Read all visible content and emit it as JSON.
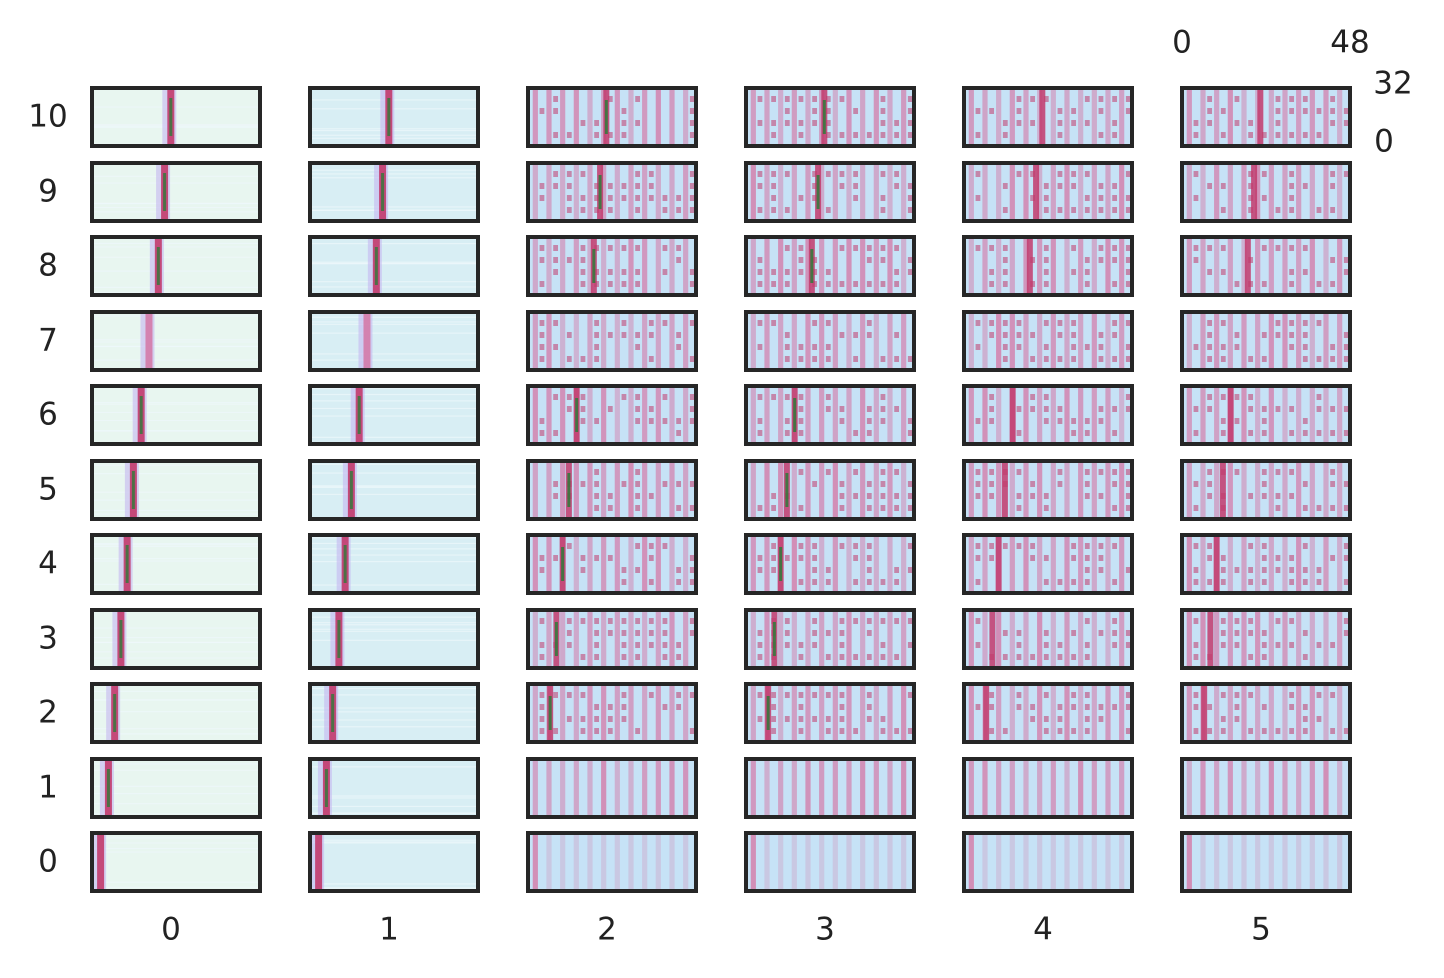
{
  "chart_data": {
    "type": "heatmap",
    "layout": "small-multiples grid",
    "columns": [
      "0",
      "1",
      "2",
      "3",
      "4",
      "5"
    ],
    "rows": [
      "10",
      "9",
      "8",
      "7",
      "6",
      "5",
      "4",
      "3",
      "2",
      "1",
      "0"
    ],
    "inset_axis": {
      "x_ticks": [
        "0",
        "48"
      ],
      "y_ticks": [
        "32",
        "0"
      ],
      "xlim": [
        0,
        48
      ],
      "ylim": [
        0,
        32
      ]
    },
    "colormap": [
      "#e8f6f0",
      "#c6e2f6",
      "#c5b8f0",
      "#d47aa8",
      "#c23a6c",
      "#2f7a3a"
    ],
    "panel_type_by_column": [
      "single-band",
      "single-band",
      "multi-band",
      "multi-band",
      "multi-band",
      "multi-band"
    ],
    "highlight_band_position_by_row": {
      "10": 0.47,
      "9": 0.43,
      "8": 0.39,
      "7": 0.33,
      "6": 0.28,
      "5": 0.23,
      "4": 0.19,
      "3": 0.15,
      "2": 0.11,
      "1": 0.07,
      "0": 0.02
    },
    "xlabel": "",
    "ylabel": "",
    "title": ""
  }
}
